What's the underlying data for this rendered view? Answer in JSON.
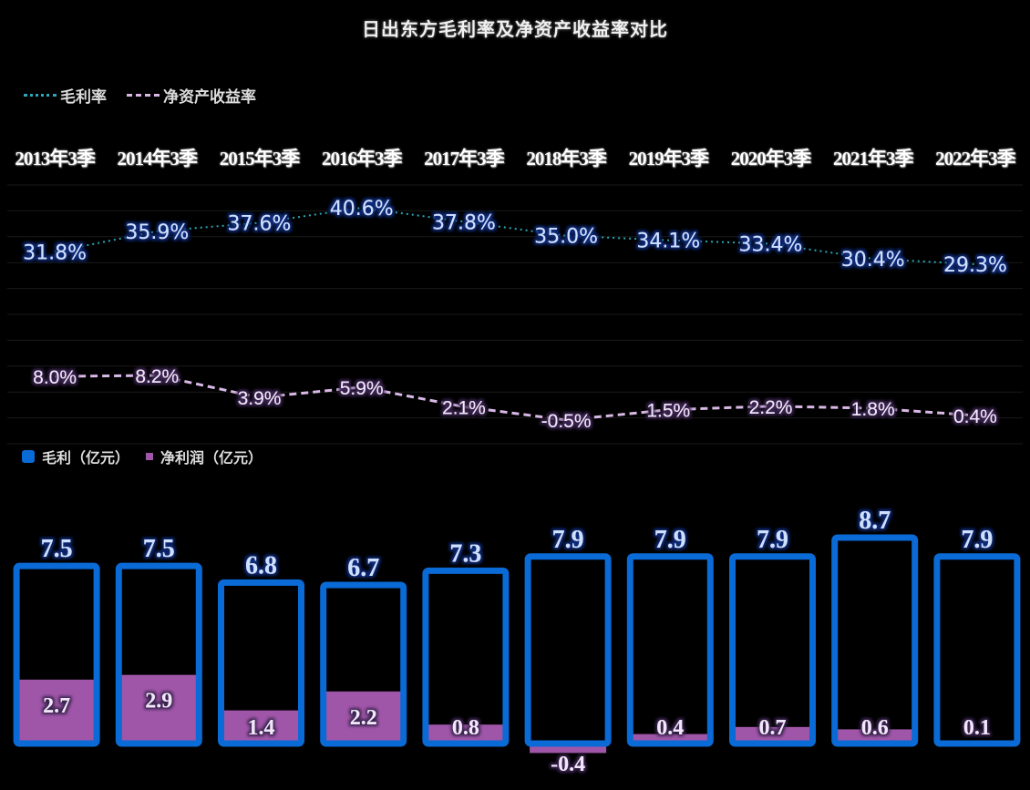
{
  "title": "日出东方毛利率及净资产收益率对比",
  "legend_top": [
    {
      "label": "毛利率",
      "style": "dotted",
      "color": "#2aa7b8"
    },
    {
      "label": "净资产收益率",
      "style": "dashed",
      "color": "#d9b8e6"
    }
  ],
  "legend_bottom": [
    {
      "label": "毛利（亿元）",
      "color": "#0a6ad6"
    },
    {
      "label": "净利润（亿元）",
      "color": "#a056a8"
    }
  ],
  "categories": [
    "2013年3季",
    "2014年3季",
    "2015年3季",
    "2016年3季",
    "2017年3季",
    "2018年3季",
    "2019年3季",
    "2020年3季",
    "2021年3季",
    "2022年3季"
  ],
  "chart_data": [
    {
      "type": "line",
      "title": "日出东方毛利率及净资产收益率对比",
      "categories": [
        "2013年3季",
        "2014年3季",
        "2015年3季",
        "2016年3季",
        "2017年3季",
        "2018年3季",
        "2019年3季",
        "2020年3季",
        "2021年3季",
        "2022年3季"
      ],
      "series": [
        {
          "name": "毛利率",
          "unit": "%",
          "values": [
            31.8,
            35.9,
            37.6,
            40.6,
            37.8,
            35.0,
            34.1,
            33.4,
            30.4,
            29.3
          ],
          "labels": [
            "31.8%",
            "35.9%",
            "37.6%",
            "40.6%",
            "37.8%",
            "35.0%",
            "34.1%",
            "33.4%",
            "30.4%",
            "29.3%"
          ],
          "line_style": "dotted",
          "color": "#2aa7b8"
        },
        {
          "name": "净资产收益率",
          "unit": "%",
          "values": [
            8.0,
            8.2,
            3.9,
            5.9,
            2.1,
            -0.5,
            1.5,
            2.2,
            1.8,
            0.4
          ],
          "labels": [
            "8.0%",
            "8.2%",
            "3.9%",
            "5.9%",
            "2.1%",
            "-0.5%",
            "1.5%",
            "2.2%",
            "1.8%",
            "0.4%"
          ],
          "line_style": "dashed",
          "color": "#d9b8e6"
        }
      ],
      "grid": true,
      "legend_position": "top-left"
    },
    {
      "type": "bar",
      "categories": [
        "2013年3季",
        "2014年3季",
        "2015年3季",
        "2016年3季",
        "2017年3季",
        "2018年3季",
        "2019年3季",
        "2020年3季",
        "2021年3季",
        "2022年3季"
      ],
      "series": [
        {
          "name": "毛利（亿元）",
          "values": [
            7.5,
            7.5,
            6.8,
            6.7,
            7.3,
            7.9,
            7.9,
            7.9,
            8.7,
            7.9
          ],
          "labels": [
            "7.5",
            "7.5",
            "6.8",
            "6.7",
            "7.3",
            "7.9",
            "7.9",
            "7.9",
            "8.7",
            "7.9"
          ],
          "color": "#0a6ad6"
        },
        {
          "name": "净利润（亿元）",
          "values": [
            2.7,
            2.9,
            1.4,
            2.2,
            0.8,
            -0.4,
            0.4,
            0.7,
            0.6,
            0.1
          ],
          "labels": [
            "2.7",
            "2.9",
            "1.4",
            "2.2",
            "0.8",
            "-0.4",
            "0.4",
            "0.7",
            "0.6",
            "0.1"
          ],
          "color": "#a056a8"
        }
      ],
      "overlap": true,
      "legend_position": "middle-left"
    }
  ]
}
